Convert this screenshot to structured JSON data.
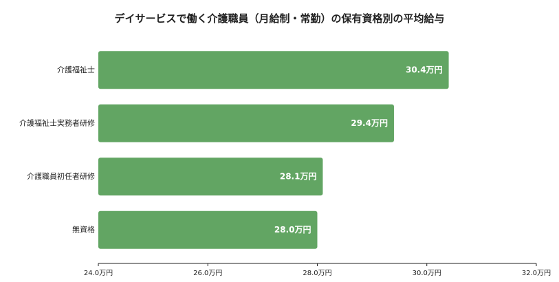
{
  "chart_data": {
    "type": "bar",
    "orientation": "horizontal",
    "title": "デイサービスで働く介護職員（月給制・常勤）の保有資格別の平均給与",
    "categories": [
      "介護福祉士",
      "介護福祉士実務者研修",
      "介護職員初任者研修",
      "無資格"
    ],
    "values": [
      30.4,
      29.4,
      28.1,
      28.0
    ],
    "data_labels": [
      "30.4万円",
      "29.4万円",
      "28.1万円",
      "28.0万円"
    ],
    "x_ticks": [
      "24.0万円",
      "26.0万円",
      "28.0万円",
      "30.0万円",
      "32.0万円"
    ],
    "xlim": [
      24,
      32
    ],
    "grid": false,
    "bar_color": "#62a563"
  }
}
